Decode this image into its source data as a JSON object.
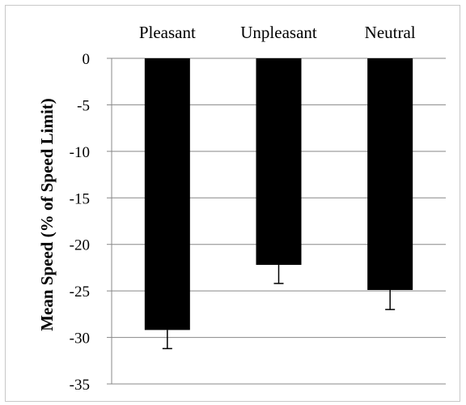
{
  "chart_data": {
    "type": "bar",
    "categories": [
      "Pleasant",
      "Unpleasant",
      "Neutral"
    ],
    "values": [
      -29.2,
      -22.2,
      -24.9
    ],
    "error": [
      2.0,
      2.0,
      2.1
    ],
    "title": "",
    "xlabel": "",
    "ylabel": "Mean Speed (% of Speed Limit)",
    "ylim": [
      -35,
      0
    ],
    "yticks": [
      0,
      -5,
      -10,
      -15,
      -20,
      -25,
      -30,
      -35
    ],
    "ytick_labels": [
      "0",
      "-5",
      "-10",
      "-15",
      "-20",
      "-25",
      "-30",
      "-35"
    ],
    "category_labels_position": "top",
    "grid": true,
    "legend": "none",
    "bar_color": "#000000",
    "grid_color": "#888888"
  }
}
